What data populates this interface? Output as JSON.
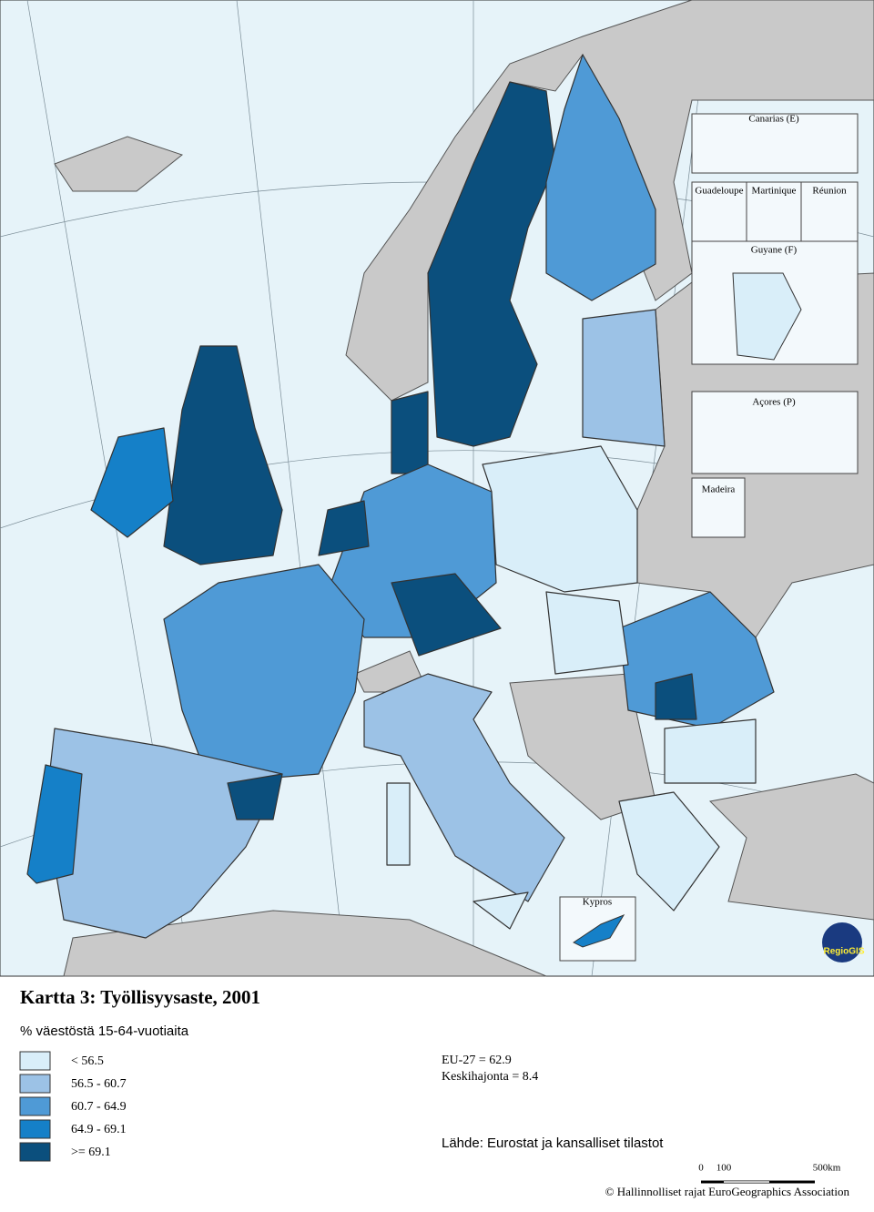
{
  "title": "Kartta 3: Työllisyysaste, 2001",
  "subtitle": "% väestöstä 15-64-vuotiaita",
  "legend": [
    {
      "label": "<  56.5",
      "color": "#d9eef9"
    },
    {
      "label": "56.5 -  60.7",
      "color": "#9cc2e6"
    },
    {
      "label": "60.7 -  64.9",
      "color": "#4f9ad6"
    },
    {
      "label": "64.9 -  69.1",
      "color": "#1580c8"
    },
    {
      "label": ">=  69.1",
      "color": "#0b4f7d"
    }
  ],
  "stats": [
    "EU-27 = 62.9",
    "Keskihajonta = 8.4"
  ],
  "source": "Lähde: Eurostat ja kansalliset tilastot",
  "scale": [
    "0",
    "100",
    "500km"
  ],
  "copyright": "© Hallinnolliset rajat EuroGeographics Association",
  "insets": [
    "Canarias (E)",
    "Guadeloupe",
    "Martinique",
    "Réunion",
    "Guyane (F)",
    "Açores (P)",
    "Madeira",
    "Kypros"
  ],
  "logo": "RegioGIS"
}
